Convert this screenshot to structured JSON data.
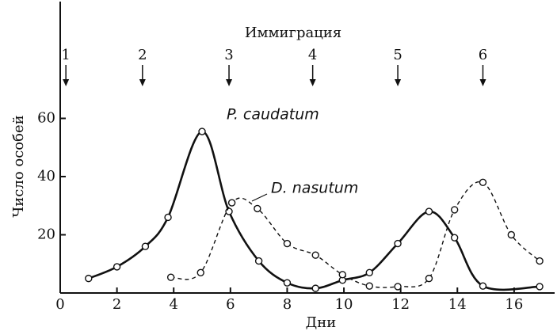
{
  "chart_data": {
    "type": "line",
    "title": "Иммиграция",
    "xlabel": "Дни",
    "ylabel": "Число особей",
    "xlim": [
      0,
      17.4
    ],
    "ylim": [
      0,
      100
    ],
    "xticks": [
      0,
      2,
      4,
      6,
      8,
      10,
      12,
      14,
      16
    ],
    "yticks": [
      20,
      40,
      60
    ],
    "annotations": [
      {
        "label": "1",
        "x": 0.2
      },
      {
        "label": "2",
        "x": 2.9
      },
      {
        "label": "3",
        "x": 5.95
      },
      {
        "label": "4",
        "x": 8.9
      },
      {
        "label": "5",
        "x": 11.9
      },
      {
        "label": "6",
        "x": 14.9
      }
    ],
    "series": [
      {
        "name": "P. caudatum",
        "color": "#111111",
        "dashed": false,
        "x": [
          1,
          2,
          3,
          3.8,
          5,
          5.95,
          7,
          8,
          9,
          9.95,
          10.9,
          11.9,
          13,
          13.9,
          14.9,
          16.9
        ],
        "values": [
          5,
          9,
          16,
          26,
          55.5,
          28,
          11,
          3.5,
          1.6,
          4.4,
          7,
          17,
          28,
          19,
          2.4,
          2.2
        ]
      },
      {
        "name": "D. nasutum",
        "color": "#111111",
        "dashed": true,
        "x": [
          3.9,
          4.95,
          6.05,
          6.95,
          8,
          9,
          9.95,
          10.9,
          11.9,
          13,
          13.9,
          14.9,
          15.9,
          16.9
        ],
        "values": [
          5.4,
          7,
          31,
          29,
          17,
          13,
          6.3,
          2.4,
          2.2,
          5,
          28.6,
          38,
          20,
          11
        ]
      }
    ]
  }
}
